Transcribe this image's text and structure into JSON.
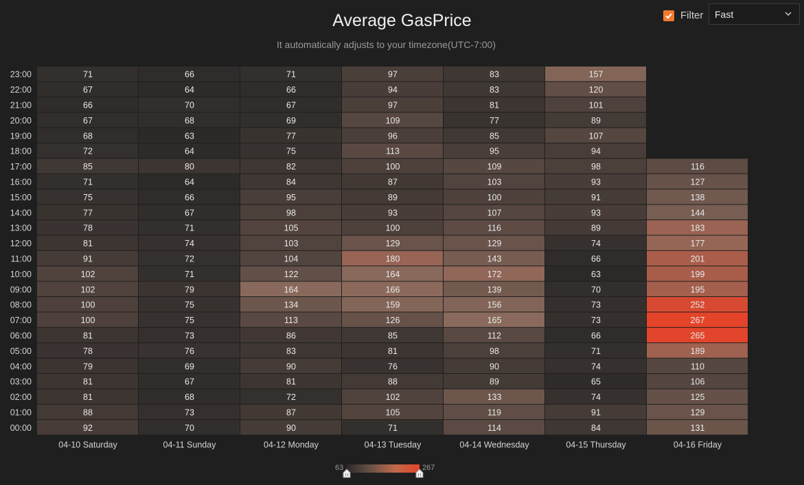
{
  "title": "Average GasPrice",
  "subtitle": "It automatically adjusts to your timezone(UTC-7:00)",
  "filter": {
    "label": "Filter",
    "checked": true,
    "checkbox_color": "#f07a2e",
    "selected": "Fast"
  },
  "legend": {
    "min_label": "63",
    "max_label": "267",
    "min": 63,
    "max": 267
  },
  "colors": {
    "background": "#1f1f1f",
    "low": "#2c2a29",
    "mid": "#8a6a5c",
    "high": "#e4442a"
  },
  "chart_data": {
    "type": "heatmap",
    "title": "Average GasPrice",
    "subtitle": "It automatically adjusts to your timezone(UTC-7:00)",
    "x_categories": [
      "04-10 Saturday",
      "04-11 Sunday",
      "04-12 Monday",
      "04-13 Tuesday",
      "04-14 Wednesday",
      "04-15 Thursday",
      "04-16 Friday"
    ],
    "y_categories": [
      "00:00",
      "01:00",
      "02:00",
      "03:00",
      "04:00",
      "05:00",
      "06:00",
      "07:00",
      "08:00",
      "09:00",
      "10:00",
      "11:00",
      "12:00",
      "13:00",
      "14:00",
      "15:00",
      "16:00",
      "17:00",
      "18:00",
      "19:00",
      "20:00",
      "21:00",
      "22:00",
      "23:00"
    ],
    "values": [
      [
        92,
        88,
        81,
        81,
        79,
        78,
        81,
        100,
        100,
        102,
        102,
        91,
        81,
        78,
        77,
        75,
        71,
        85,
        72,
        68,
        67,
        66,
        67,
        71
      ],
      [
        70,
        73,
        68,
        67,
        69,
        76,
        73,
        75,
        75,
        79,
        71,
        72,
        74,
        71,
        67,
        66,
        64,
        80,
        64,
        63,
        68,
        70,
        64,
        66
      ],
      [
        90,
        87,
        72,
        81,
        90,
        83,
        86,
        113,
        134,
        164,
        122,
        104,
        103,
        105,
        98,
        95,
        84,
        82,
        75,
        77,
        69,
        67,
        66,
        71
      ],
      [
        71,
        105,
        102,
        88,
        76,
        81,
        85,
        126,
        159,
        166,
        164,
        180,
        129,
        100,
        93,
        89,
        87,
        100,
        113,
        96,
        109,
        97,
        94,
        97
      ],
      [
        114,
        119,
        133,
        89,
        90,
        98,
        112,
        165,
        156,
        139,
        172,
        143,
        129,
        116,
        107,
        100,
        103,
        109,
        95,
        85,
        77,
        81,
        83,
        83
      ],
      [
        84,
        91,
        74,
        65,
        74,
        71,
        66,
        73,
        73,
        70,
        63,
        66,
        74,
        89,
        93,
        91,
        93,
        98,
        94,
        107,
        89,
        101,
        120,
        157
      ],
      [
        131,
        129,
        125,
        106,
        110,
        189,
        265,
        267,
        252,
        195,
        199,
        201,
        177,
        183,
        144,
        138,
        127,
        116,
        null,
        null,
        null,
        null,
        null,
        null
      ]
    ],
    "value_range": [
      63,
      267
    ],
    "legend_placement": "bottom-center"
  }
}
